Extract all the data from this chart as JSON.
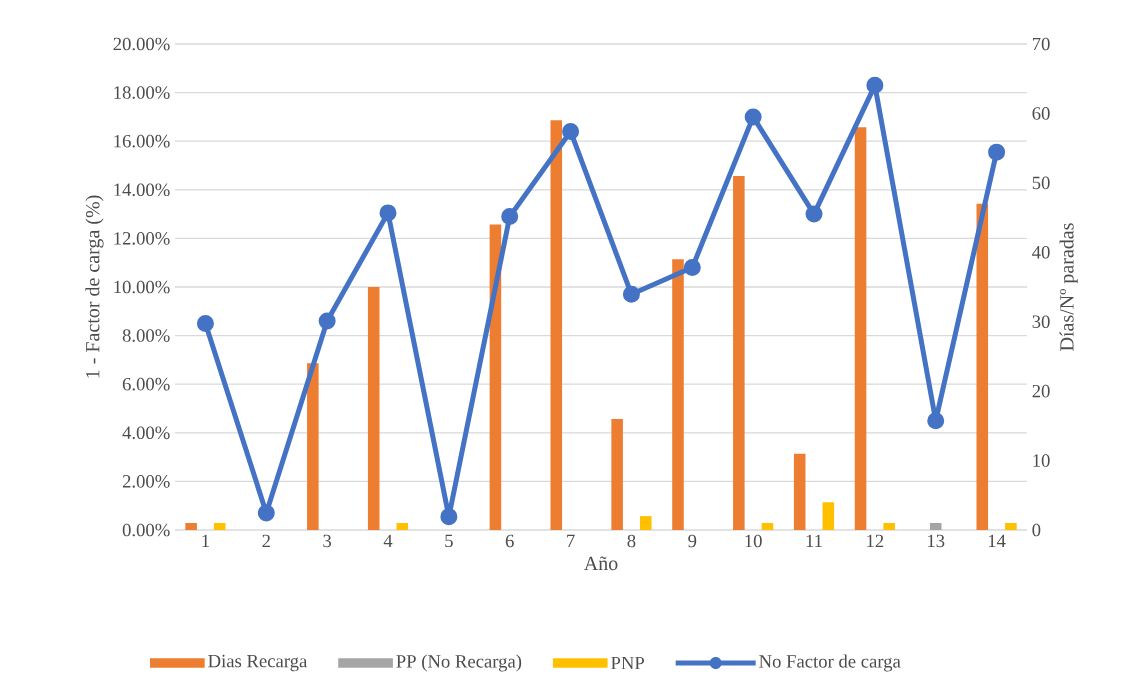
{
  "chart_data": {
    "type": "bar",
    "xlabel": "Año",
    "ylabel": "1 - Factor de carga (%)",
    "y2label": "Días/Nº paradas",
    "categories": [
      "1",
      "2",
      "3",
      "4",
      "5",
      "6",
      "7",
      "8",
      "9",
      "10",
      "11",
      "12",
      "13",
      "14"
    ],
    "series": [
      {
        "name": "Dias Recarga",
        "color": "#ed7d31",
        "axis": "y2",
        "values": [
          1,
          null,
          24,
          35,
          null,
          44,
          59,
          16,
          39,
          51,
          11,
          58,
          null,
          47
        ]
      },
      {
        "name": "PP (No Recarga)",
        "color": "#a5a5a5",
        "axis": "y2",
        "values": [
          null,
          null,
          null,
          null,
          null,
          null,
          null,
          null,
          null,
          null,
          null,
          null,
          1,
          null
        ]
      },
      {
        "name": "PNP",
        "color": "#ffc000",
        "axis": "y2",
        "values": [
          1,
          null,
          null,
          1,
          null,
          null,
          null,
          2,
          null,
          1,
          4,
          1,
          null,
          1
        ]
      },
      {
        "name": "No Factor de carga",
        "type": "line",
        "color": "#4472c4",
        "values": [
          8.5,
          0.7,
          8.6,
          13.05,
          0.55,
          12.9,
          16.4,
          9.7,
          10.8,
          17.0,
          13.0,
          18.3,
          4.5,
          15.55
        ]
      }
    ],
    "ylim": [
      0,
      20
    ],
    "yticks": [
      {
        "value": 0,
        "label": "0.00%"
      },
      {
        "value": 2,
        "label": "2.00%"
      },
      {
        "value": 4,
        "label": "4.00%"
      },
      {
        "value": 6,
        "label": "6.00%"
      },
      {
        "value": 8,
        "label": "8.00%"
      },
      {
        "value": 10,
        "label": "10.00%"
      },
      {
        "value": 12,
        "label": "12.00%"
      },
      {
        "value": 14,
        "label": "14.00%"
      },
      {
        "value": 16,
        "label": "16.00%"
      },
      {
        "value": 18,
        "label": "18.00%"
      },
      {
        "value": 20,
        "label": "20.00%"
      }
    ],
    "y2lim": [
      0,
      70
    ],
    "y2ticks": [
      0,
      10,
      20,
      30,
      40,
      50,
      60,
      70
    ],
    "grid": "y",
    "legend": "bottom",
    "marker": "circle",
    "line_style": "solid"
  }
}
